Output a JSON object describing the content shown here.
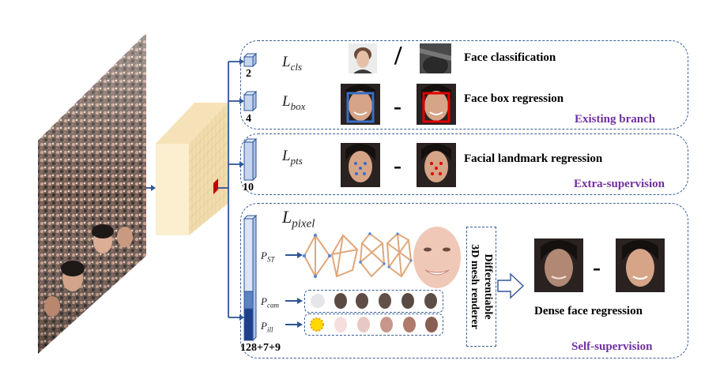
{
  "rows": {
    "cls": {
      "loss_symbol": "L",
      "loss_sub": "cls",
      "channels": "2",
      "label": "Face classification",
      "separator": "/"
    },
    "box": {
      "loss_symbol": "L",
      "loss_sub": "box",
      "channels": "4",
      "label": "Face box regression",
      "separator": "-"
    },
    "pts": {
      "loss_symbol": "L",
      "loss_sub": "pts",
      "channels": "10",
      "label": "Facial landmark regression",
      "separator": "-"
    },
    "pixel": {
      "loss_symbol": "L",
      "loss_sub": "pixel",
      "channels": "128+7+9",
      "label": "Dense face regression",
      "separator": "-"
    }
  },
  "branches": {
    "existing": "Existing branch",
    "extra": "Extra-supervision",
    "self": "Self-supervision"
  },
  "params": [
    {
      "symbol": "P",
      "sub": "ST"
    },
    {
      "symbol": "P",
      "sub": "cam"
    },
    {
      "symbol": "P",
      "sub": "ill"
    }
  ],
  "renderer": {
    "line1": "Differentiable",
    "line2": "3D mesh renderer"
  },
  "colors": {
    "box_border": "#3b5f98",
    "branch_text": "#7030a0",
    "arrow": "#2e5597",
    "gt_box": "#e00000",
    "pred_box": "#3a6fc4"
  }
}
